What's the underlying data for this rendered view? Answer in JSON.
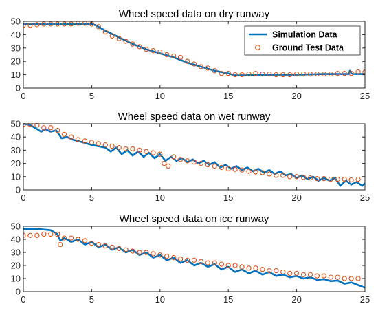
{
  "chart_data": [
    {
      "type": "line",
      "title": "Wheel speed data on dry runway",
      "xlabel": "",
      "ylabel": "",
      "xlim": [
        0,
        25
      ],
      "ylim": [
        0,
        50
      ],
      "xticks": [
        0,
        5,
        10,
        15,
        20,
        25
      ],
      "yticks": [
        0,
        10,
        20,
        30,
        40,
        50
      ],
      "grid": false,
      "legend": {
        "placement": "top-right",
        "entries": [
          "Simulation Data",
          "Ground Test Data"
        ]
      },
      "series": [
        {
          "name": "Simulation Data",
          "style": "line",
          "color": "#0072BD",
          "x": [
            0,
            1,
            2,
            3,
            4,
            5,
            5.3,
            6,
            7,
            8,
            9,
            10,
            11,
            12,
            13,
            14,
            15,
            15.5,
            16,
            18,
            20,
            22,
            23.8,
            23.9,
            24.0,
            24.2,
            25
          ],
          "y": [
            48,
            48,
            48,
            48,
            48,
            48,
            47,
            43,
            38,
            33,
            29,
            26,
            23,
            19,
            16,
            13,
            11,
            9.5,
            9.5,
            10,
            10,
            10.5,
            10.5,
            13,
            11,
            10.5,
            10.5
          ]
        },
        {
          "name": "Ground Test Data",
          "style": "markers",
          "color": "#D95319",
          "x": [
            0,
            0.5,
            1,
            1.5,
            2,
            2.5,
            3,
            3.5,
            4,
            4.5,
            5,
            5.5,
            6,
            6.5,
            7,
            7.5,
            8,
            8.5,
            9,
            9.5,
            10,
            10.5,
            11,
            11.5,
            12,
            12.5,
            13,
            13.5,
            14,
            14.5,
            15,
            15.5,
            16,
            16.5,
            17,
            17.5,
            18,
            18.5,
            19,
            19.5,
            20,
            20.5,
            21,
            21.5,
            22,
            22.5,
            23,
            23.5,
            24,
            24.5,
            25
          ],
          "y": [
            47,
            47,
            47.5,
            48,
            48,
            48,
            48,
            48,
            48.5,
            48.5,
            48,
            46,
            42,
            39,
            37,
            35,
            33,
            31,
            29,
            28,
            27,
            25,
            24,
            23,
            20,
            18,
            16,
            15,
            13,
            11,
            11,
            10,
            10,
            10.5,
            11,
            10.5,
            10.5,
            10,
            10,
            10,
            10.5,
            10.5,
            10.5,
            10.5,
            10.5,
            10.5,
            11,
            11,
            11,
            12,
            12
          ]
        }
      ]
    },
    {
      "type": "line",
      "title": "Wheel speed data on wet runway",
      "xlabel": "",
      "ylabel": "",
      "xlim": [
        0,
        25
      ],
      "ylim": [
        0,
        50
      ],
      "xticks": [
        0,
        5,
        10,
        15,
        20,
        25
      ],
      "yticks": [
        0,
        10,
        20,
        30,
        40,
        50
      ],
      "grid": false,
      "series": [
        {
          "style": "line",
          "color": "#0072BD",
          "x": [
            0,
            0.5,
            1,
            1.3,
            1.6,
            2,
            2.4,
            2.8,
            3.2,
            3.6,
            4,
            5,
            6,
            6.4,
            6.8,
            7.2,
            7.6,
            8,
            8.4,
            8.8,
            9.2,
            9.6,
            10,
            10.4,
            10.8,
            11.2,
            11.6,
            12,
            12.4,
            12.8,
            13.2,
            13.6,
            14,
            14.4,
            14.8,
            15.2,
            15.6,
            16,
            16.4,
            16.8,
            17.2,
            17.6,
            18,
            18.4,
            18.8,
            19.2,
            19.6,
            20,
            20.4,
            20.8,
            21.2,
            21.6,
            22,
            22.4,
            22.8,
            23.2,
            23.6,
            24,
            24.4,
            24.8,
            25
          ],
          "y": [
            50,
            49,
            46,
            44,
            46,
            44,
            45,
            39,
            40,
            38,
            37,
            34,
            32,
            29,
            32,
            27,
            30,
            26,
            29,
            25,
            28,
            24,
            27,
            22,
            25,
            22,
            24,
            21,
            23,
            20,
            22,
            19,
            21,
            17,
            19,
            16,
            18,
            15,
            17,
            14,
            16,
            13,
            15,
            12,
            14,
            11,
            12,
            9,
            11,
            8,
            10,
            7,
            9,
            7,
            9,
            3,
            7,
            4,
            6,
            3,
            5
          ]
        },
        {
          "style": "markers",
          "color": "#D95319",
          "x": [
            0,
            0.5,
            1,
            1.5,
            2,
            2.5,
            3,
            3.5,
            4,
            4.5,
            5,
            5.5,
            6,
            6.5,
            7,
            7.5,
            8,
            8.5,
            9,
            9.5,
            10,
            10.3,
            10.6,
            11,
            11.5,
            12,
            12.5,
            13,
            13.5,
            14,
            14.5,
            15,
            15.5,
            16,
            16.5,
            17,
            17.5,
            18,
            18.5,
            19,
            19.5,
            20,
            20.5,
            21,
            21.5,
            22,
            22.5,
            23,
            23.5,
            24,
            24.5
          ],
          "y": [
            49.5,
            49.5,
            49,
            47,
            47,
            45,
            42,
            40,
            38,
            37,
            36,
            35,
            34,
            33,
            32,
            31,
            31,
            30,
            29,
            28,
            27,
            20,
            18,
            25,
            23,
            22,
            21,
            20,
            19,
            18,
            17,
            16,
            15.5,
            15,
            14,
            13.5,
            13,
            12,
            11,
            11,
            10,
            10,
            9.5,
            9,
            8.5,
            8.5,
            8,
            8,
            8,
            7.5,
            8
          ]
        }
      ]
    },
    {
      "type": "line",
      "title": "Wheel speed data on ice runway",
      "xlabel": "",
      "ylabel": "",
      "xlim": [
        0,
        25
      ],
      "ylim": [
        0,
        50
      ],
      "xticks": [
        0,
        5,
        10,
        15,
        20,
        25
      ],
      "yticks": [
        0,
        10,
        20,
        30,
        40,
        50
      ],
      "grid": false,
      "series": [
        {
          "style": "line",
          "color": "#0072BD",
          "x": [
            0,
            1,
            2,
            2.5,
            2.7,
            3,
            3.5,
            4,
            4.5,
            5,
            5.5,
            6,
            6.5,
            7,
            7.5,
            8,
            8.5,
            9,
            9.5,
            10,
            10.5,
            11,
            11.5,
            12,
            12.5,
            13,
            13.5,
            14,
            14.5,
            15,
            15.5,
            16,
            16.5,
            17,
            17.5,
            18,
            18.5,
            19,
            19.5,
            20,
            20.5,
            21,
            21.5,
            22,
            22.5,
            23,
            23.5,
            24,
            24.5,
            25
          ],
          "y": [
            48,
            48,
            47,
            44,
            39,
            41,
            38,
            40,
            36,
            38,
            34,
            36,
            32,
            34,
            30,
            32,
            28,
            30,
            26,
            28,
            24,
            26,
            22,
            24,
            20,
            22,
            19,
            21,
            17,
            19,
            15,
            17,
            14,
            16,
            13,
            15,
            12,
            13,
            11,
            12,
            10,
            11,
            9,
            9.5,
            8,
            8.5,
            6,
            7,
            5,
            3
          ]
        },
        {
          "style": "markers",
          "color": "#D95319",
          "x": [
            0,
            0.5,
            1,
            1.5,
            2,
            2.5,
            2.7,
            3,
            3.5,
            4,
            4.5,
            5,
            5.5,
            6,
            6.5,
            7,
            7.5,
            8,
            8.5,
            9,
            9.5,
            10,
            10.5,
            11,
            11.5,
            12,
            12.5,
            13,
            13.5,
            14,
            14.5,
            15,
            15.5,
            16,
            16.5,
            17,
            17.5,
            18,
            18.5,
            19,
            19.5,
            20,
            20.5,
            21,
            21.5,
            22,
            22.5,
            23,
            23.5,
            24,
            24.5
          ],
          "y": [
            43,
            43,
            43,
            44,
            44,
            44,
            36,
            41,
            41,
            40,
            39,
            37,
            36,
            35,
            34,
            33,
            32,
            31,
            30,
            30,
            29,
            28,
            27,
            26,
            25,
            24,
            24,
            23,
            22,
            22,
            21,
            20,
            20,
            19,
            18,
            18,
            17,
            16,
            16,
            15,
            14,
            14,
            13,
            13,
            12,
            12,
            11,
            11,
            10,
            10,
            10
          ]
        }
      ]
    }
  ]
}
